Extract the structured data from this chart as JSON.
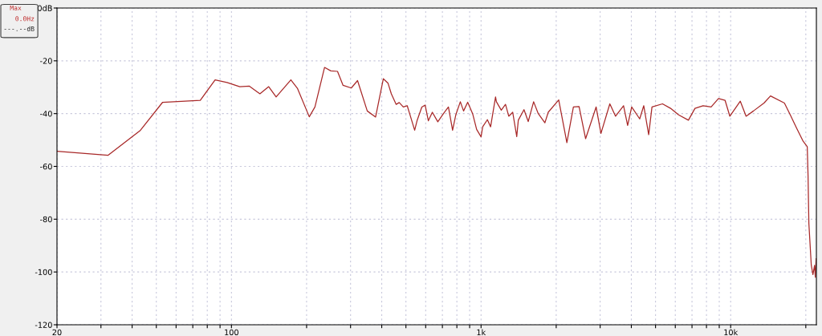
{
  "chart_data": {
    "type": "line",
    "annotations": [
      "Max",
      "0.0Hz",
      "---.--dB"
    ],
    "xlim": [
      20,
      22050
    ],
    "ylim": [
      -120,
      0
    ],
    "log": "x",
    "grid": true,
    "legend": false,
    "marker": "none",
    "line_style": "solid",
    "xticks": [
      20,
      {
        "value": 30,
        "label": null
      },
      {
        "value": 40,
        "label": null
      },
      {
        "value": 50,
        "label": null
      },
      {
        "value": 60,
        "label": null
      },
      {
        "value": 70,
        "label": null
      },
      {
        "value": 80,
        "label": null
      },
      {
        "value": 90,
        "label": null
      },
      100,
      {
        "value": 200,
        "label": null
      },
      {
        "value": 300,
        "label": null
      },
      {
        "value": 400,
        "label": null
      },
      {
        "value": 500,
        "label": null
      },
      {
        "value": 600,
        "label": null
      },
      {
        "value": 700,
        "label": null
      },
      {
        "value": 800,
        "label": null
      },
      {
        "value": 900,
        "label": null
      },
      {
        "value": 1000,
        "label": "1k"
      },
      {
        "value": 2000,
        "label": null
      },
      {
        "value": 3000,
        "label": null
      },
      {
        "value": 4000,
        "label": null
      },
      {
        "value": 5000,
        "label": null
      },
      {
        "value": 6000,
        "label": null
      },
      {
        "value": 7000,
        "label": null
      },
      {
        "value": 8000,
        "label": null
      },
      {
        "value": 9000,
        "label": null
      },
      {
        "value": 10000,
        "label": "10k"
      },
      {
        "value": 20000,
        "label": null
      }
    ],
    "yticks": [
      {
        "value": 0,
        "label": "0dB"
      },
      -20,
      -40,
      -60,
      -80,
      -100,
      -120
    ],
    "series": [
      {
        "color": "#a82828",
        "x": [
          20,
          32,
          43,
          53,
          75,
          86,
          96,
          108,
          118,
          130,
          141,
          151,
          173,
          184,
          205,
          216,
          236,
          250,
          266,
          280,
          302,
          320,
          350,
          378,
          406,
          424,
          437,
          457,
          470,
          488,
          506,
          542,
          554,
          579,
          597,
          615,
          638,
          671,
          707,
          740,
          769,
          792,
          826,
          851,
          884,
          925,
          960,
          1000,
          1015,
          1060,
          1092,
          1143,
          1152,
          1205,
          1253,
          1291,
          1339,
          1390,
          1410,
          1486,
          1545,
          1624,
          1695,
          1802,
          1858,
          2047,
          2207,
          2344,
          2470,
          2623,
          2890,
          3022,
          3280,
          3458,
          3723,
          3866,
          4013,
          4321,
          4486,
          4694,
          4839,
          5332,
          5744,
          6188,
          6773,
          7195,
          7752,
          8350,
          8937,
          9500,
          9926,
          10930,
          11530,
          12340,
          13600,
          14440,
          16420,
          17440,
          18370,
          19520,
          20270,
          20420,
          20570,
          21040,
          21360,
          21680,
          21840,
          22000
        ],
        "values": [
          -54.3,
          -55.8,
          -46.5,
          -35.7,
          -35,
          -27.2,
          -28.2,
          -29.8,
          -29.6,
          -32.5,
          -29.8,
          -33.7,
          -27.2,
          -30.5,
          -41.2,
          -37.5,
          -22.5,
          -23.8,
          -24,
          -29.3,
          -30.3,
          -27.5,
          -39,
          -41.3,
          -26.8,
          -28.5,
          -32.5,
          -36.5,
          -35.8,
          -37.5,
          -37,
          -46.3,
          -42.7,
          -37.5,
          -36.8,
          -42.7,
          -39.5,
          -43.1,
          -40,
          -37.5,
          -46.3,
          -40.5,
          -35.5,
          -39,
          -35.7,
          -40,
          -46,
          -48.8,
          -45,
          -42.3,
          -45,
          -33.7,
          -35.5,
          -38.7,
          -36.5,
          -41,
          -39.5,
          -48.7,
          -42.5,
          -38.5,
          -43,
          -35.5,
          -40,
          -43.5,
          -39.5,
          -34.8,
          -51,
          -37.5,
          -37.3,
          -49.5,
          -37.5,
          -47.5,
          -36.3,
          -41,
          -37,
          -44.5,
          -37.5,
          -42,
          -37,
          -48,
          -37.5,
          -36.3,
          -38,
          -40.5,
          -42.5,
          -38,
          -37,
          -37.5,
          -34.3,
          -35,
          -41,
          -35.3,
          -41,
          -39,
          -36,
          -33.3,
          -36,
          -41,
          -45.5,
          -50.5,
          -52.5,
          -63.5,
          -81.5,
          -97.5,
          -101,
          -97.5,
          -102,
          -95
        ]
      }
    ]
  }
}
